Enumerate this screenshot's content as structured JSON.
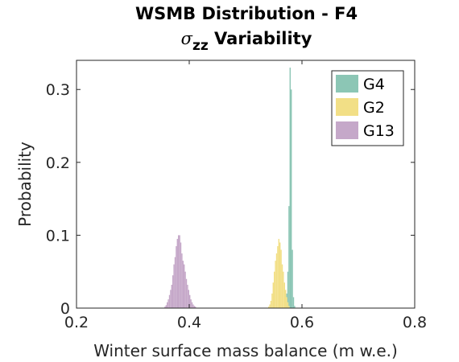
{
  "chart_data": {
    "type": "bar",
    "title_line1": "WSMB Distribution - F4",
    "title_line2_symbol": "σ",
    "title_line2_subscript": "zz",
    "title_line2_text": " Variability",
    "xlabel": "Winter surface mass balance (m w.e.)",
    "ylabel": "Probability",
    "xlim": [
      0.2,
      0.8
    ],
    "ylim": [
      0,
      0.34
    ],
    "xticks": [
      0.2,
      0.4,
      0.6,
      0.8
    ],
    "xtick_labels": [
      "0.2",
      "0.4",
      "0.6",
      "0.8"
    ],
    "yticks": [
      0,
      0.1,
      0.2,
      0.3
    ],
    "ytick_labels": [
      "0",
      "0.1",
      "0.2",
      "0.3"
    ],
    "bin_width": 0.002,
    "grid": false,
    "legend_position": "top-right",
    "series": [
      {
        "name": "G4",
        "color": "#8cc6b5",
        "bins": [
          0.57,
          0.572,
          0.574,
          0.576,
          0.578,
          0.58,
          0.582,
          0.584,
          0.586
        ],
        "values": [
          0.003,
          0.02,
          0.05,
          0.14,
          0.33,
          0.3,
          0.08,
          0.015,
          0.003
        ]
      },
      {
        "name": "G2",
        "color": "#f2df86",
        "bins": [
          0.54,
          0.542,
          0.544,
          0.546,
          0.548,
          0.55,
          0.552,
          0.554,
          0.556,
          0.558,
          0.56,
          0.562,
          0.564,
          0.566,
          0.568,
          0.57,
          0.572,
          0.574,
          0.576
        ],
        "values": [
          0.002,
          0.005,
          0.01,
          0.02,
          0.035,
          0.05,
          0.065,
          0.075,
          0.085,
          0.095,
          0.09,
          0.08,
          0.06,
          0.05,
          0.035,
          0.025,
          0.015,
          0.008,
          0.003
        ]
      },
      {
        "name": "G13",
        "color": "#c5a8c9",
        "bins": [
          0.356,
          0.358,
          0.36,
          0.362,
          0.364,
          0.366,
          0.368,
          0.37,
          0.372,
          0.374,
          0.376,
          0.378,
          0.38,
          0.382,
          0.384,
          0.386,
          0.388,
          0.39,
          0.392,
          0.394,
          0.396,
          0.398,
          0.4,
          0.402,
          0.404,
          0.406,
          0.408,
          0.41
        ],
        "values": [
          0.002,
          0.004,
          0.008,
          0.012,
          0.018,
          0.025,
          0.032,
          0.045,
          0.06,
          0.07,
          0.085,
          0.095,
          0.1,
          0.1,
          0.09,
          0.075,
          0.065,
          0.06,
          0.05,
          0.04,
          0.032,
          0.025,
          0.018,
          0.012,
          0.008,
          0.005,
          0.003,
          0.002
        ]
      }
    ]
  }
}
